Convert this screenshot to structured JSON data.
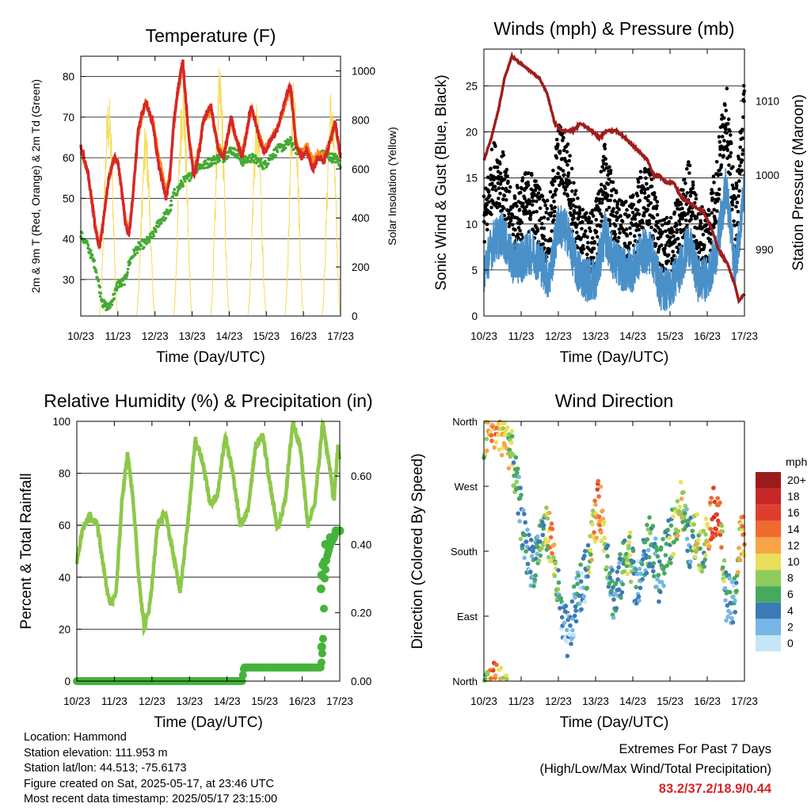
{
  "info": {
    "location": "Location: Hammond",
    "elevation": "Station elevation: 111.953 m",
    "latlon": "Station lat/lon: 44.513; -75.6173",
    "created": "Figure created on Sat, 2025-05-17, at 23:46 UTC",
    "recent": "Most recent data timestamp: 2025/05/17 23:15:00"
  },
  "extremes": {
    "title": "Extremes For Past 7 Days",
    "subtitle": "(High/Low/Max Wind/Total Precipitation)",
    "values": "83.2/37.2/18.9/0.44"
  },
  "colors": {
    "temp2m": "#d62728",
    "temp9m": "#ff8c1a",
    "dewpoint": "#44aa33",
    "solar": "#f5dc5a",
    "gust": "#000000",
    "wind": "#4a90c8",
    "pressure": "#a01c1c",
    "rh": "#8dc84a",
    "precip": "#44b33a"
  },
  "chart_data": [
    {
      "name": "temperature",
      "type": "line",
      "title": "Temperature (F)",
      "xlabel": "Time (Day/UTC)",
      "ylabel": "2m & 9m T (Red, Orange) & 2m Td (Green)",
      "y2label": "Solar Insolation (Yellow)",
      "xticks": [
        "10/23",
        "11/23",
        "12/23",
        "13/23",
        "14/23",
        "15/23",
        "16/23",
        "17/23"
      ],
      "xlim": [
        0,
        7
      ],
      "ylim": [
        21,
        85
      ],
      "yticks": [
        30,
        40,
        50,
        60,
        70,
        80
      ],
      "y2lim": [
        0,
        1060
      ],
      "y2ticks": [
        0,
        200,
        400,
        600,
        800,
        1000
      ],
      "grid": true,
      "series": [
        {
          "name": "2m T",
          "x": [
            0,
            0.2,
            0.4,
            0.5,
            0.6,
            0.75,
            0.9,
            1.0,
            1.1,
            1.2,
            1.3,
            1.4,
            1.55,
            1.75,
            1.95,
            2.1,
            2.3,
            2.4,
            2.5,
            2.6,
            2.75,
            2.9,
            3.05,
            3.2,
            3.3,
            3.5,
            3.7,
            3.85,
            4.05,
            4.2,
            4.35,
            4.6,
            4.8,
            4.95,
            5.1,
            5.3,
            5.5,
            5.65,
            5.8,
            5.95,
            6.1,
            6.25,
            6.4,
            6.55,
            6.75,
            6.85,
            6.95,
            7.0
          ],
          "values": [
            63,
            56,
            42,
            37.5,
            44,
            55,
            60,
            59,
            52,
            44,
            41,
            50,
            67,
            74,
            68,
            58,
            50,
            55,
            68,
            76,
            84,
            66,
            55,
            62,
            69,
            73,
            62,
            60,
            70,
            64,
            60,
            73,
            65,
            61,
            64,
            67,
            74,
            78,
            63,
            60,
            62,
            57,
            60,
            59,
            65,
            69,
            63,
            60
          ]
        },
        {
          "name": "9m T",
          "x": [
            0,
            0.2,
            0.4,
            0.5,
            0.6,
            0.75,
            0.9,
            1.0,
            1.1,
            1.2,
            1.3,
            1.4,
            1.55,
            1.75,
            1.95,
            2.1,
            2.3,
            2.4,
            2.5,
            2.6,
            2.75,
            2.9,
            3.05,
            3.2,
            3.3,
            3.5,
            3.7,
            3.85,
            4.05,
            4.2,
            4.35,
            4.6,
            4.8,
            4.95,
            5.1,
            5.3,
            5.5,
            5.65,
            5.8,
            5.95,
            6.1,
            6.25,
            6.4,
            6.55,
            6.75,
            6.85,
            6.95,
            7.0
          ],
          "values": [
            62,
            56,
            43,
            38,
            44,
            55,
            60,
            59,
            52,
            45,
            42,
            50,
            66,
            74,
            69,
            60,
            52,
            56,
            67,
            75,
            82,
            66,
            57,
            63,
            69,
            72,
            63,
            61,
            69,
            64,
            61,
            72,
            66,
            62,
            64,
            67,
            73,
            77,
            64,
            61,
            63,
            59,
            61,
            60,
            65,
            68,
            63,
            60
          ]
        },
        {
          "name": "2m Td",
          "x": [
            0,
            0.2,
            0.4,
            0.5,
            0.6,
            0.75,
            0.9,
            1.0,
            1.1,
            1.2,
            1.3,
            1.4,
            1.55,
            1.75,
            1.95,
            2.1,
            2.3,
            2.4,
            2.5,
            2.6,
            2.75,
            2.9,
            3.05,
            3.2,
            3.3,
            3.5,
            3.7,
            3.85,
            4.05,
            4.2,
            4.35,
            4.6,
            4.8,
            4.95,
            5.1,
            5.3,
            5.5,
            5.65,
            5.8,
            5.95,
            6.1,
            6.25,
            6.4,
            6.55,
            6.75,
            6.85,
            6.95,
            7.0
          ],
          "values": [
            41,
            38,
            33,
            28,
            24,
            23,
            26,
            29,
            29,
            30,
            34,
            36,
            38,
            39,
            41,
            44,
            46,
            47,
            51,
            52,
            54,
            55,
            57,
            58,
            58,
            59,
            60,
            60,
            62,
            61,
            59,
            60,
            59,
            58,
            60,
            62,
            63,
            64,
            62,
            61,
            62,
            59,
            60,
            61,
            60,
            60,
            59,
            57
          ]
        },
        {
          "name": "Solar",
          "peaks": [
            0.75,
            1.75,
            2.75,
            3.75,
            4.75,
            5.75,
            6.75
          ],
          "values": [
            920,
            790,
            1000,
            1030,
            870,
            1010,
            950
          ]
        }
      ]
    },
    {
      "name": "winds",
      "type": "scatter",
      "title": "Winds (mph) & Pressure (mb)",
      "xlabel": "Time (Day/UTC)",
      "ylabel": "Sonic Wind & Gust (Blue, Black)",
      "y2label": "Station Pressure (Maroon)",
      "xticks": [
        "10/23",
        "11/23",
        "12/23",
        "13/23",
        "14/23",
        "15/23",
        "16/23",
        "17/23"
      ],
      "xlim": [
        0,
        7
      ],
      "ylim": [
        0,
        29
      ],
      "yticks": [
        0,
        5,
        10,
        15,
        20,
        25
      ],
      "y2lim": [
        981,
        1017
      ],
      "y2ticks": [
        990,
        1000,
        1010
      ],
      "grid": true,
      "series": [
        {
          "name": "Gust",
          "x": [
            0,
            0.25,
            0.5,
            0.75,
            1.0,
            1.25,
            1.5,
            1.75,
            2.0,
            2.25,
            2.5,
            2.75,
            3.0,
            3.25,
            3.5,
            3.75,
            4.0,
            4.25,
            4.5,
            4.75,
            5.0,
            5.25,
            5.5,
            5.75,
            6.0,
            6.25,
            6.5,
            6.75,
            7.0
          ],
          "values": [
            9,
            15,
            14,
            9,
            11,
            12,
            10,
            8,
            17,
            15,
            9,
            7,
            8,
            15,
            10,
            8,
            9,
            12,
            12,
            6,
            7,
            9,
            13,
            8,
            8,
            13,
            22,
            9,
            22
          ]
        },
        {
          "name": "Wind",
          "x": [
            0,
            0.25,
            0.5,
            0.75,
            1.0,
            1.25,
            1.5,
            1.75,
            2.0,
            2.25,
            2.5,
            2.75,
            3.0,
            3.25,
            3.5,
            3.75,
            4.0,
            4.25,
            4.5,
            4.75,
            5.0,
            5.25,
            5.5,
            5.75,
            6.0,
            6.25,
            6.5,
            6.75,
            7.0
          ],
          "values": [
            5,
            8,
            9,
            6,
            6,
            7,
            6,
            4,
            10,
            9,
            5,
            4,
            4,
            9,
            6,
            5,
            5,
            7,
            7,
            3,
            3,
            5,
            8,
            4,
            4,
            7,
            14,
            5,
            14
          ]
        },
        {
          "name": "Pressure",
          "x": [
            0,
            0.2,
            0.4,
            0.55,
            0.75,
            1.0,
            1.25,
            1.5,
            1.7,
            1.9,
            2.1,
            2.4,
            2.6,
            2.9,
            3.1,
            3.3,
            3.55,
            3.8,
            4.0,
            4.2,
            4.4,
            4.55,
            4.7,
            4.9,
            5.1,
            5.3,
            5.6,
            5.9,
            6.1,
            6.3,
            6.55,
            6.75,
            6.85,
            7.0
          ],
          "values": [
            1002,
            1005,
            1009,
            1013,
            1016,
            1015,
            1014,
            1013,
            1011,
            1007,
            1006,
            1006,
            1007,
            1006,
            1005,
            1006,
            1006,
            1005,
            1004,
            1003,
            1002,
            1000,
            1000,
            999,
            999,
            997,
            996,
            995,
            993,
            990,
            988,
            985,
            983,
            984
          ]
        }
      ]
    },
    {
      "name": "humidity",
      "type": "line",
      "title": "Relative Humidity (%) & Precipitation (in)",
      "xlabel": "Time (Day/UTC)",
      "ylabel": "Percent & Total Rainfall",
      "xticks": [
        "10/23",
        "11/23",
        "12/23",
        "13/23",
        "14/23",
        "15/23",
        "16/23",
        "17/23"
      ],
      "xlim": [
        0,
        7
      ],
      "ylim": [
        0,
        100
      ],
      "yticks": [
        0,
        20,
        40,
        60,
        80,
        100
      ],
      "y2lim": [
        0,
        0.76
      ],
      "y2ticks": [
        "0.00",
        "0.20",
        "0.40",
        "0.60"
      ],
      "grid": true,
      "series": [
        {
          "name": "RH",
          "x": [
            0,
            0.15,
            0.35,
            0.55,
            0.75,
            0.9,
            1.05,
            1.2,
            1.35,
            1.5,
            1.65,
            1.8,
            1.95,
            2.15,
            2.35,
            2.55,
            2.75,
            2.95,
            3.15,
            3.35,
            3.55,
            3.75,
            3.95,
            4.15,
            4.35,
            4.55,
            4.75,
            4.95,
            5.15,
            5.35,
            5.55,
            5.75,
            5.95,
            6.15,
            6.35,
            6.55,
            6.75,
            6.85,
            6.95,
            7.0
          ],
          "values": [
            46,
            58,
            64,
            60,
            40,
            29,
            35,
            70,
            88,
            70,
            40,
            20,
            30,
            60,
            65,
            50,
            35,
            60,
            93,
            85,
            68,
            72,
            95,
            80,
            60,
            65,
            90,
            95,
            75,
            58,
            70,
            100,
            90,
            60,
            70,
            100,
            80,
            70,
            90,
            86
          ]
        },
        {
          "name": "Precipitation",
          "x": [
            0,
            4.4,
            4.45,
            6.45,
            6.5,
            6.55,
            6.6,
            6.65,
            6.75,
            6.85,
            6.9,
            7.0
          ],
          "values": [
            0,
            0,
            0.04,
            0.04,
            0.04,
            0.1,
            0.3,
            0.36,
            0.4,
            0.42,
            0.44,
            0.44
          ]
        }
      ]
    },
    {
      "name": "direction",
      "type": "scatter",
      "title": "Wind Direction",
      "xlabel": "Time (Day/UTC)",
      "ylabel": "Direction (Colored By Speed)",
      "xticks": [
        "10/23",
        "11/23",
        "12/23",
        "13/23",
        "14/23",
        "15/23",
        "16/23",
        "17/23"
      ],
      "xlim": [
        0,
        7
      ],
      "ylim": [
        0,
        360
      ],
      "yticks": [
        "North",
        "East",
        "South",
        "West",
        "North"
      ],
      "legend": {
        "title": "mph",
        "labels": [
          "20+",
          "18",
          "16",
          "14",
          "12",
          "10",
          "8",
          "6",
          "4",
          "2",
          "0"
        ],
        "colors": [
          "#9b1b1b",
          "#c62828",
          "#e03e2d",
          "#f06a30",
          "#f9a348",
          "#e8df5a",
          "#8fcc5c",
          "#45a960",
          "#3d7ab8",
          "#78b6e6",
          "#c6e5f8"
        ],
        "position": "right"
      },
      "series": [
        {
          "name": "Direction",
          "x": [
            0.0,
            0.2,
            0.35,
            0.6,
            0.8,
            1.1,
            1.3,
            1.6,
            1.8,
            2.1,
            2.3,
            2.5,
            2.7,
            2.9,
            3.1,
            3.3,
            3.5,
            3.7,
            3.9,
            4.1,
            4.3,
            4.5,
            4.7,
            4.9,
            5.1,
            5.3,
            5.5,
            5.7,
            5.9,
            6.1,
            6.3,
            6.5,
            6.7,
            6.9
          ],
          "values": [
            330,
            360,
            350,
            345,
            300,
            190,
            160,
            210,
            200,
            80,
            60,
            120,
            140,
            200,
            250,
            180,
            110,
            150,
            190,
            120,
            170,
            200,
            140,
            180,
            210,
            250,
            190,
            200,
            180,
            230,
            240,
            120,
            100,
            200
          ],
          "speeds": [
            6,
            14,
            12,
            10,
            6,
            4,
            3,
            6,
            12,
            3,
            2,
            4,
            3,
            10,
            14,
            5,
            3,
            4,
            8,
            3,
            4,
            6,
            3,
            6,
            8,
            10,
            4,
            10,
            6,
            14,
            16,
            4,
            3,
            12
          ]
        }
      ]
    }
  ]
}
